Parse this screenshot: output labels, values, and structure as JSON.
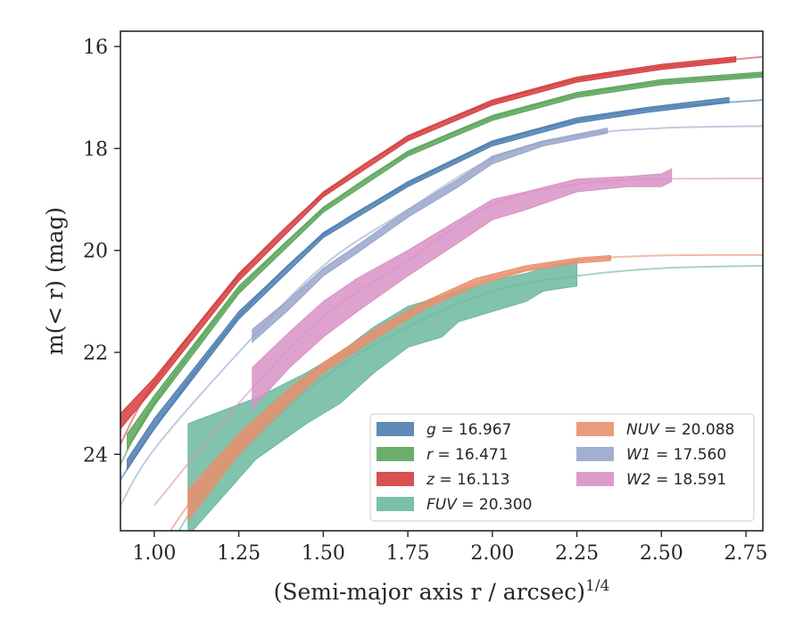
{
  "chart_data": {
    "type": "line",
    "title": "",
    "xlabel": "(Semi-major axis r / arcsec)",
    "xlabel_exponent": "1/4",
    "ylabel": "m(< r) (mag)",
    "xlim": [
      0.9,
      2.8
    ],
    "ylim": [
      25.5,
      15.7
    ],
    "y_inverted": true,
    "grid": false,
    "legend_placement": "lower-right",
    "x_ticks": [
      1.0,
      1.25,
      1.5,
      1.75,
      2.0,
      2.25,
      2.5,
      2.75
    ],
    "x_tick_labels": [
      "1.00",
      "1.25",
      "1.50",
      "1.75",
      "2.00",
      "2.25",
      "2.50",
      "2.75"
    ],
    "y_ticks": [
      16,
      18,
      20,
      22,
      24
    ],
    "y_tick_labels": [
      "16",
      "18",
      "20",
      "22",
      "24"
    ],
    "series": [
      {
        "name": "g = 16.967",
        "label_var": "g",
        "label_value": "16.967",
        "color": "#4c7eb0",
        "model": [
          [
            0.9,
            24.5
          ],
          [
            1.0,
            23.5
          ],
          [
            1.25,
            21.3
          ],
          [
            1.5,
            19.7
          ],
          [
            1.75,
            18.7
          ],
          [
            2.0,
            17.9
          ],
          [
            2.25,
            17.45
          ],
          [
            2.5,
            17.2
          ],
          [
            2.8,
            17.05
          ]
        ],
        "data": [
          [
            0.92,
            24.1,
            24.3
          ],
          [
            1.0,
            23.3,
            23.5
          ],
          [
            1.25,
            21.2,
            21.35
          ],
          [
            1.5,
            19.65,
            19.75
          ],
          [
            1.75,
            18.65,
            18.75
          ],
          [
            2.0,
            17.85,
            17.95
          ],
          [
            2.25,
            17.4,
            17.5
          ],
          [
            2.45,
            17.2,
            17.3
          ],
          [
            2.7,
            17.0,
            17.1
          ]
        ]
      },
      {
        "name": "r = 16.471",
        "label_var": "r",
        "label_value": "16.471",
        "color": "#5ba55b",
        "model": [
          [
            0.9,
            24.2
          ],
          [
            1.0,
            23.0
          ],
          [
            1.25,
            20.8
          ],
          [
            1.5,
            19.2
          ],
          [
            1.75,
            18.1
          ],
          [
            2.0,
            17.4
          ],
          [
            2.25,
            16.95
          ],
          [
            2.5,
            16.7
          ],
          [
            2.8,
            16.55
          ]
        ],
        "data": [
          [
            0.92,
            23.6,
            23.9
          ],
          [
            1.0,
            22.85,
            23.05
          ],
          [
            1.25,
            20.7,
            20.85
          ],
          [
            1.5,
            19.15,
            19.25
          ],
          [
            1.75,
            18.05,
            18.15
          ],
          [
            2.0,
            17.35,
            17.45
          ],
          [
            2.25,
            16.9,
            17.0
          ],
          [
            2.5,
            16.65,
            16.75
          ],
          [
            2.8,
            16.5,
            16.6
          ]
        ]
      },
      {
        "name": "z = 16.113",
        "label_var": "z",
        "label_value": "16.113",
        "color": "#d43d3d",
        "model": [
          [
            0.9,
            23.8
          ],
          [
            1.0,
            22.6
          ],
          [
            1.25,
            20.5
          ],
          [
            1.5,
            18.9
          ],
          [
            1.75,
            17.8
          ],
          [
            2.0,
            17.1
          ],
          [
            2.25,
            16.65
          ],
          [
            2.5,
            16.4
          ],
          [
            2.8,
            16.2
          ]
        ],
        "data": [
          [
            0.9,
            23.2,
            23.5
          ],
          [
            1.0,
            22.5,
            22.7
          ],
          [
            1.25,
            20.45,
            20.6
          ],
          [
            1.5,
            18.85,
            18.95
          ],
          [
            1.75,
            17.75,
            17.85
          ],
          [
            2.0,
            17.05,
            17.15
          ],
          [
            2.25,
            16.6,
            16.7
          ],
          [
            2.5,
            16.35,
            16.45
          ],
          [
            2.72,
            16.2,
            16.3
          ]
        ]
      },
      {
        "name": "FUV = 20.300",
        "label_var": "FUV",
        "label_value": "20.300",
        "color": "#6cb89f",
        "model": [
          [
            1.0,
            26.5
          ],
          [
            1.1,
            25.2
          ],
          [
            1.25,
            24.0
          ],
          [
            1.5,
            22.5
          ],
          [
            1.75,
            21.5
          ],
          [
            2.0,
            20.8
          ],
          [
            2.25,
            20.5
          ],
          [
            2.5,
            20.35
          ],
          [
            2.8,
            20.3
          ]
        ],
        "data": [
          [
            1.1,
            23.4,
            25.6
          ],
          [
            1.3,
            22.9,
            24.1
          ],
          [
            1.45,
            22.4,
            23.4
          ],
          [
            1.55,
            22.0,
            23.0
          ],
          [
            1.65,
            21.5,
            22.4
          ],
          [
            1.75,
            21.1,
            21.9
          ],
          [
            1.85,
            20.9,
            21.7
          ],
          [
            1.9,
            20.8,
            21.4
          ],
          [
            2.0,
            20.6,
            21.2
          ],
          [
            2.1,
            20.45,
            21.0
          ],
          [
            2.15,
            20.35,
            20.8
          ],
          [
            2.25,
            20.2,
            20.7
          ]
        ]
      },
      {
        "name": "NUV = 20.088",
        "label_var": "NUV",
        "label_value": "20.088",
        "color": "#e8906e",
        "model": [
          [
            1.0,
            26.0
          ],
          [
            1.1,
            25.0
          ],
          [
            1.25,
            23.8
          ],
          [
            1.5,
            22.3
          ],
          [
            1.75,
            21.2
          ],
          [
            2.0,
            20.55
          ],
          [
            2.25,
            20.2
          ],
          [
            2.5,
            20.1
          ],
          [
            2.8,
            20.09
          ]
        ],
        "data": [
          [
            1.1,
            24.7,
            25.3
          ],
          [
            1.25,
            23.6,
            24.0
          ],
          [
            1.4,
            22.7,
            23.0
          ],
          [
            1.5,
            22.2,
            22.4
          ],
          [
            1.65,
            21.55,
            21.75
          ],
          [
            1.8,
            21.0,
            21.15
          ],
          [
            1.95,
            20.55,
            20.7
          ],
          [
            2.1,
            20.3,
            20.4
          ],
          [
            2.25,
            20.15,
            20.25
          ],
          [
            2.35,
            20.1,
            20.2
          ]
        ]
      },
      {
        "name": "W1 = 17.560",
        "label_var": "W1",
        "label_value": "17.560",
        "color": "#98a6c9",
        "model": [
          [
            0.9,
            25.0
          ],
          [
            1.0,
            23.9
          ],
          [
            1.25,
            22.0
          ],
          [
            1.5,
            20.3
          ],
          [
            1.75,
            19.2
          ],
          [
            2.0,
            18.2
          ],
          [
            2.25,
            17.75
          ],
          [
            2.5,
            17.6
          ],
          [
            2.8,
            17.56
          ]
        ],
        "data": [
          [
            1.29,
            21.55,
            21.8
          ],
          [
            1.4,
            20.95,
            21.15
          ],
          [
            1.5,
            20.35,
            20.5
          ],
          [
            1.6,
            19.9,
            20.05
          ],
          [
            1.75,
            19.2,
            19.35
          ],
          [
            1.9,
            18.6,
            18.75
          ],
          [
            2.0,
            18.15,
            18.3
          ],
          [
            2.15,
            17.85,
            17.95
          ],
          [
            2.34,
            17.6,
            17.7
          ]
        ]
      },
      {
        "name": "W2 = 18.591",
        "label_var": "W2",
        "label_value": "18.591",
        "color": "#d992c5",
        "model": [
          [
            1.0,
            25.0
          ],
          [
            1.25,
            23.0
          ],
          [
            1.5,
            21.3
          ],
          [
            1.75,
            20.2
          ],
          [
            2.0,
            19.1
          ],
          [
            2.25,
            18.7
          ],
          [
            2.5,
            18.6
          ],
          [
            2.8,
            18.59
          ]
        ],
        "data": [
          [
            1.29,
            22.3,
            23.1
          ],
          [
            1.4,
            21.6,
            22.3
          ],
          [
            1.5,
            21.0,
            21.7
          ],
          [
            1.6,
            20.55,
            21.2
          ],
          [
            1.75,
            20.0,
            20.5
          ],
          [
            1.9,
            19.4,
            19.85
          ],
          [
            2.0,
            19.0,
            19.4
          ],
          [
            2.1,
            18.85,
            19.2
          ],
          [
            2.25,
            18.6,
            18.85
          ],
          [
            2.4,
            18.55,
            18.75
          ],
          [
            2.5,
            18.5,
            18.75
          ],
          [
            2.53,
            18.4,
            18.65
          ]
        ]
      }
    ],
    "legend_columns": [
      [
        "g = 16.967",
        "r = 16.471",
        "z = 16.113",
        "FUV = 20.300"
      ],
      [
        "NUV = 20.088",
        "W1 = 17.560",
        "W2 = 18.591"
      ]
    ]
  }
}
